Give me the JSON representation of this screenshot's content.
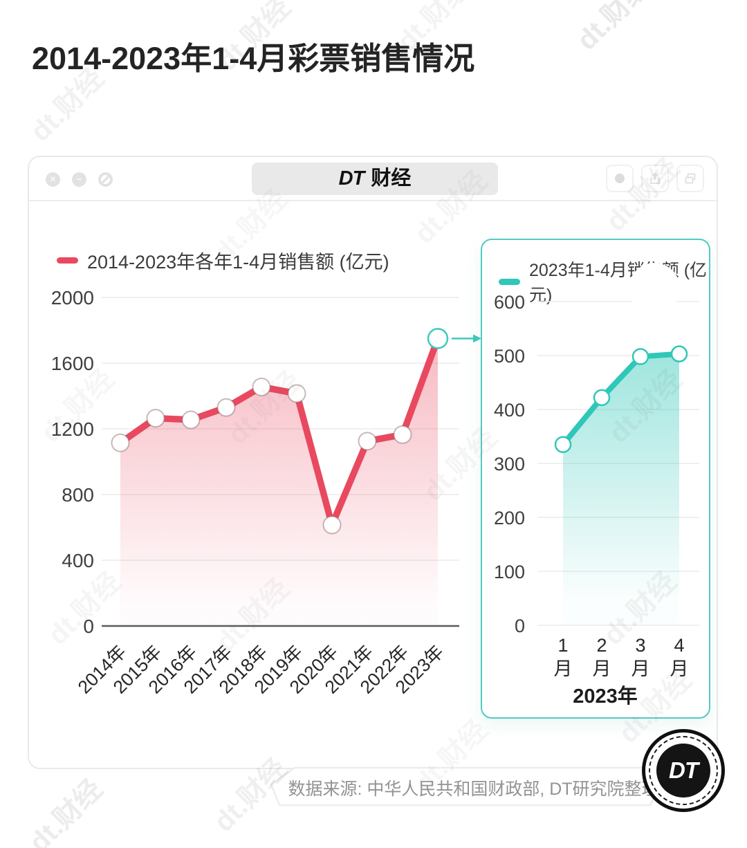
{
  "page": {
    "title": "2014-2023年1-4月彩票销售情况"
  },
  "window": {
    "tab_brand": "DT",
    "tab_suffix": "财经",
    "controls": {
      "close_glyph": "✕",
      "minimize_glyph": "−"
    },
    "control_icons": [
      "close",
      "minimize",
      "block"
    ],
    "right_icons": [
      "record",
      "share-upload",
      "copy-windows"
    ]
  },
  "watermark": {
    "text": "dt.财经"
  },
  "source": {
    "text": "数据来源: 中华人民共和国财政部, DT研究院整理"
  },
  "logo": {
    "text": "DT"
  },
  "colors": {
    "accent_red": "#E8495F",
    "accent_teal": "#2FC7B8",
    "panel_border": "#52CBC0",
    "grid": "#ebebeb",
    "axis_dark": "#5a5a5a",
    "tick_text": "#3f3f3f"
  },
  "chart_data": [
    {
      "type": "area",
      "legend": "2014-2023年各年1-4月销售额 (亿元)",
      "color": "#E8495F",
      "categories": [
        "2014年",
        "2015年",
        "2016年",
        "2017年",
        "2018年",
        "2019年",
        "2020年",
        "2021年",
        "2022年",
        "2023年"
      ],
      "values": [
        1115,
        1265,
        1255,
        1330,
        1455,
        1415,
        615,
        1125,
        1165,
        1750
      ],
      "ylim": [
        0,
        2000
      ],
      "yticks": [
        2000,
        1600,
        1200,
        800,
        400,
        0
      ],
      "grid": true,
      "legend_position": "top-left",
      "highlight_last_point": true,
      "unit": "亿元"
    },
    {
      "type": "area",
      "legend": "2023年1-4月销售额 (亿元)",
      "color": "#2FC7B8",
      "categories": [
        "1月",
        "2月",
        "3月",
        "4月"
      ],
      "values": [
        335,
        422,
        498,
        503
      ],
      "xlabel": "2023年",
      "ylim": [
        0,
        600
      ],
      "yticks": [
        600,
        500,
        400,
        300,
        200,
        100,
        0
      ],
      "grid": true,
      "legend_position": "top-left",
      "unit": "亿元"
    }
  ]
}
